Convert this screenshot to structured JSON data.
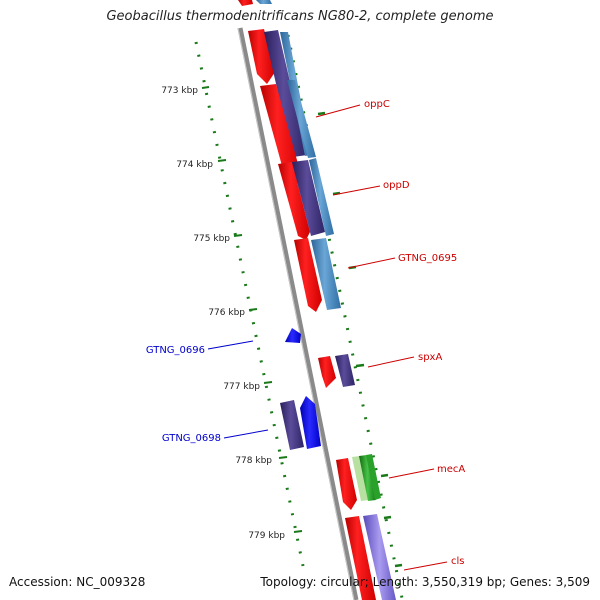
{
  "title": "Geobacillus thermodenitrificans NG80-2, complete genome",
  "footer": {
    "accession": "Accession: NC_009328",
    "summary": "Topology: circular; Length: 3,550,319 bp; Genes: 3,509"
  },
  "ticks": [
    "773 kbp",
    "774 kbp",
    "775 kbp",
    "776 kbp",
    "777 kbp",
    "778 kbp",
    "779 kbp"
  ],
  "labels": {
    "oppC": "oppC",
    "oppD": "oppD",
    "gtng0695": "GTNG_0695",
    "gtng0696": "GTNG_0696",
    "spxA": "spxA",
    "gtng0698": "GTNG_0698",
    "mecA": "mecA",
    "cls": "cls"
  },
  "colors": {
    "forward_cds": "#ff0000",
    "reverse_cds": "#0000ff",
    "label_forward": "#cc0000",
    "label_reverse": "#0000cc",
    "track_purple": "#3c2f78",
    "track_blue": "#3a7fb7",
    "track_green": "#1f9e1f",
    "track_violet": "#7a6ad0",
    "tick_green": "#1a7a1a",
    "backbone": "#8a8a8a"
  }
}
